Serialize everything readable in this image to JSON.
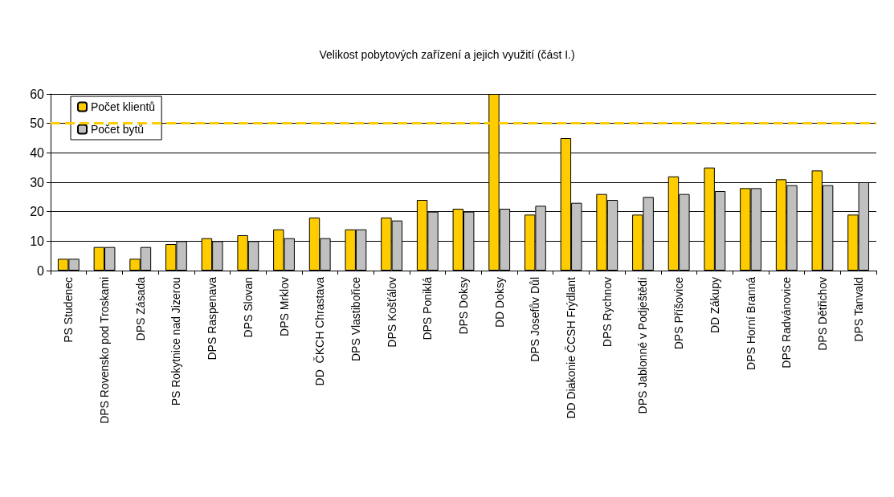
{
  "chart_data": {
    "type": "bar",
    "title": "Velikost pobytových zařízení a jejich využití (část I.)",
    "categories": [
      "PS Studenec",
      "DPS Rovensko pod Troskami",
      "DPS Zásada",
      "PS Rokytnice nad Jizerou",
      "DPS Raspenava",
      "DPS Slovan",
      "DPS Mrklov",
      "DD  ČKCH Chrastava",
      "DPS Vlastibořice",
      "DPS Košťálov",
      "DPS Poniklá",
      "DPS Doksy",
      "DD Doksy",
      "DPS Josefův Důl",
      "DD Diakonie ČCSH Frýdlant",
      "DPS Rychnov",
      "DPS Jablonné v Podještědí",
      "DPS Příšovice",
      "DD Zákupy",
      "DPS Horní Branná",
      "DPS Radvánovice",
      "DPS Dětřichov",
      "DPS Tanvald"
    ],
    "series": [
      {
        "name": "Počet klientů",
        "color": "#ffcc00",
        "values": [
          4,
          8,
          4,
          9,
          11,
          12,
          14,
          18,
          14,
          18,
          24,
          21,
          60,
          19,
          45,
          26,
          19,
          32,
          35,
          28,
          31,
          34,
          19
        ]
      },
      {
        "name": "Počet bytů",
        "color": "#c0c0c0",
        "values": [
          4,
          8,
          8,
          10,
          10,
          10,
          11,
          11,
          14,
          17,
          20,
          20,
          21,
          22,
          23,
          24,
          25,
          26,
          27,
          28,
          29,
          29,
          30
        ]
      }
    ],
    "ylim": [
      0,
      60
    ],
    "yticks": [
      0,
      10,
      20,
      30,
      40,
      50,
      60
    ],
    "grid": "y",
    "legend": "top left",
    "ref_lines": [
      {
        "axis": "y",
        "value": 50,
        "color": "#ffcc00",
        "line_style": "dashed"
      }
    ]
  }
}
